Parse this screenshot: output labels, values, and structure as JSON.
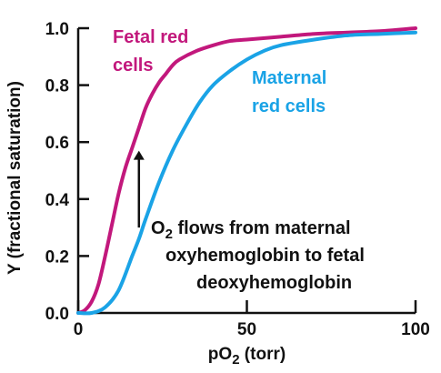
{
  "chart_data": {
    "type": "line",
    "xlabel": {
      "prefix": "pO",
      "subscript": "2",
      "suffix": " (torr)"
    },
    "ylabel": "Y (fractional saturation)",
    "xlim": [
      0,
      100
    ],
    "ylim": [
      0,
      1.0
    ],
    "x_ticks": [
      "0",
      "50",
      "100"
    ],
    "y_ticks": [
      "0.0",
      "0.2",
      "0.4",
      "0.6",
      "0.8",
      "1.0"
    ],
    "grid": false,
    "series": [
      {
        "name": "Fetal red cells",
        "label_lines": [
          "Fetal red",
          "cells"
        ],
        "color": "#c2187c",
        "x": [
          0,
          2,
          4,
          6,
          8,
          10,
          12,
          14,
          16,
          18,
          20,
          22,
          24,
          26,
          28,
          30,
          35,
          40,
          45,
          50,
          60,
          70,
          80,
          90,
          100
        ],
        "y": [
          0.0,
          0.01,
          0.04,
          0.1,
          0.2,
          0.31,
          0.42,
          0.51,
          0.58,
          0.65,
          0.72,
          0.77,
          0.81,
          0.84,
          0.87,
          0.89,
          0.92,
          0.94,
          0.955,
          0.96,
          0.97,
          0.98,
          0.985,
          0.99,
          1.0
        ]
      },
      {
        "name": "Maternal red cells",
        "label_lines": [
          "Maternal",
          "red cells"
        ],
        "color": "#1aa3e6",
        "x": [
          0,
          4,
          8,
          12,
          16,
          18,
          20,
          24,
          28,
          32,
          36,
          40,
          45,
          50,
          55,
          60,
          70,
          80,
          90,
          100
        ],
        "y": [
          0.0,
          0.0,
          0.02,
          0.08,
          0.2,
          0.26,
          0.33,
          0.46,
          0.57,
          0.66,
          0.74,
          0.8,
          0.85,
          0.89,
          0.92,
          0.94,
          0.96,
          0.975,
          0.98,
          0.985
        ]
      }
    ],
    "annotations": [
      {
        "type": "arrow",
        "x": 18,
        "from_y": 0.3,
        "to_y": 0.57,
        "color": "#111111",
        "lines": [
          {
            "prefix": "O",
            "subscript": "2",
            "suffix": " flows from maternal"
          },
          {
            "prefix": "oxyhemoglobin to fetal",
            "subscript": "",
            "suffix": ""
          },
          {
            "prefix": "deoxyhemoglobin",
            "subscript": "",
            "suffix": ""
          }
        ]
      }
    ]
  }
}
